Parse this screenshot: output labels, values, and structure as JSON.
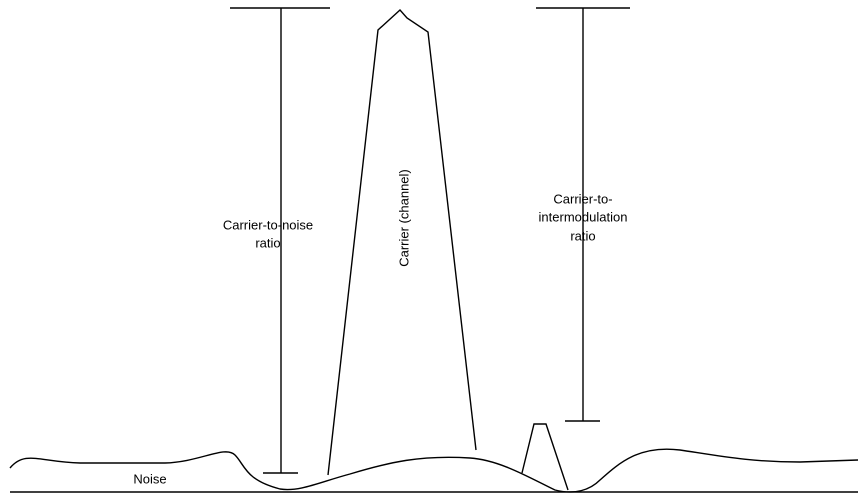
{
  "labels": {
    "cn_ratio": [
      "Carrier-to-noise",
      "ratio"
    ],
    "carrier": "Carrier (channel)",
    "ci_ratio": [
      "Carrier-to-",
      "intermodulation",
      "ratio"
    ],
    "noise": "Noise"
  }
}
